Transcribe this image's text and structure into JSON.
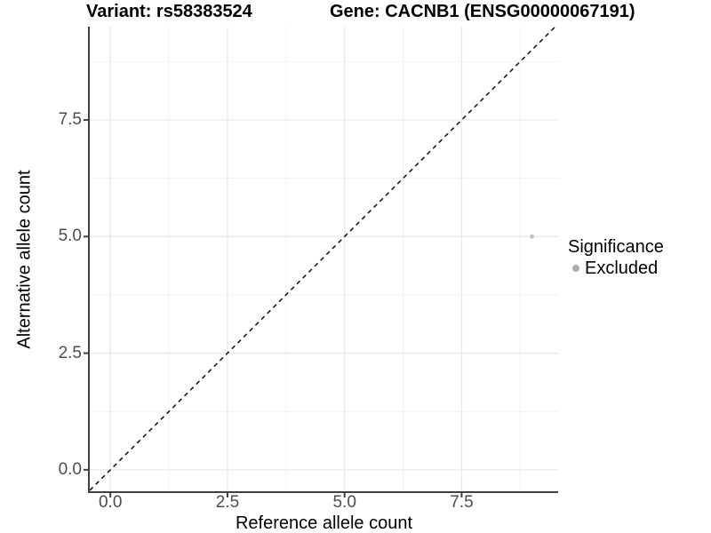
{
  "header": {
    "variant_title": "Variant: rs58383524",
    "gene_title": "Gene: CACNB1 (ENSG00000067191)"
  },
  "axes": {
    "x": {
      "label": "Reference allele count",
      "tick_labels": [
        "0.0",
        "2.5",
        "5.0",
        "7.5"
      ]
    },
    "y": {
      "label": "Alternative allele count",
      "tick_labels": [
        "0.0",
        "2.5",
        "5.0",
        "7.5"
      ]
    }
  },
  "legend": {
    "title": "Significance",
    "items": [
      {
        "label": "Excluded",
        "marker": "circle-icon",
        "color": "#acacac"
      }
    ]
  },
  "chart_data": {
    "type": "scatter",
    "title": "Variant: rs58383524  Gene: CACNB1 (ENSG00000067191)",
    "xlabel": "Reference allele count",
    "ylabel": "Alternative allele count",
    "x_ticks": [
      0,
      2.5,
      5,
      7.5
    ],
    "y_ticks": [
      0,
      2.5,
      5,
      7.5
    ],
    "xlim": [
      -0.44,
      9.56
    ],
    "ylim": [
      -0.46,
      9.5
    ],
    "grid": true,
    "legend_position": "right",
    "series": [
      {
        "name": "Excluded",
        "color": "#bfbfbf",
        "points": [
          {
            "x": 9,
            "y": 5
          }
        ]
      }
    ],
    "reference_line": {
      "type": "identity",
      "slope": 1,
      "intercept": 0,
      "style": "dashed",
      "color": "#1a1a1a"
    },
    "colors": {
      "grid_major": "#e9e9e9",
      "grid_minor": "#f2f2f2",
      "axis_line": "#404040",
      "tick_text": "#4d4d4d",
      "point": "#bfbfbf"
    }
  }
}
